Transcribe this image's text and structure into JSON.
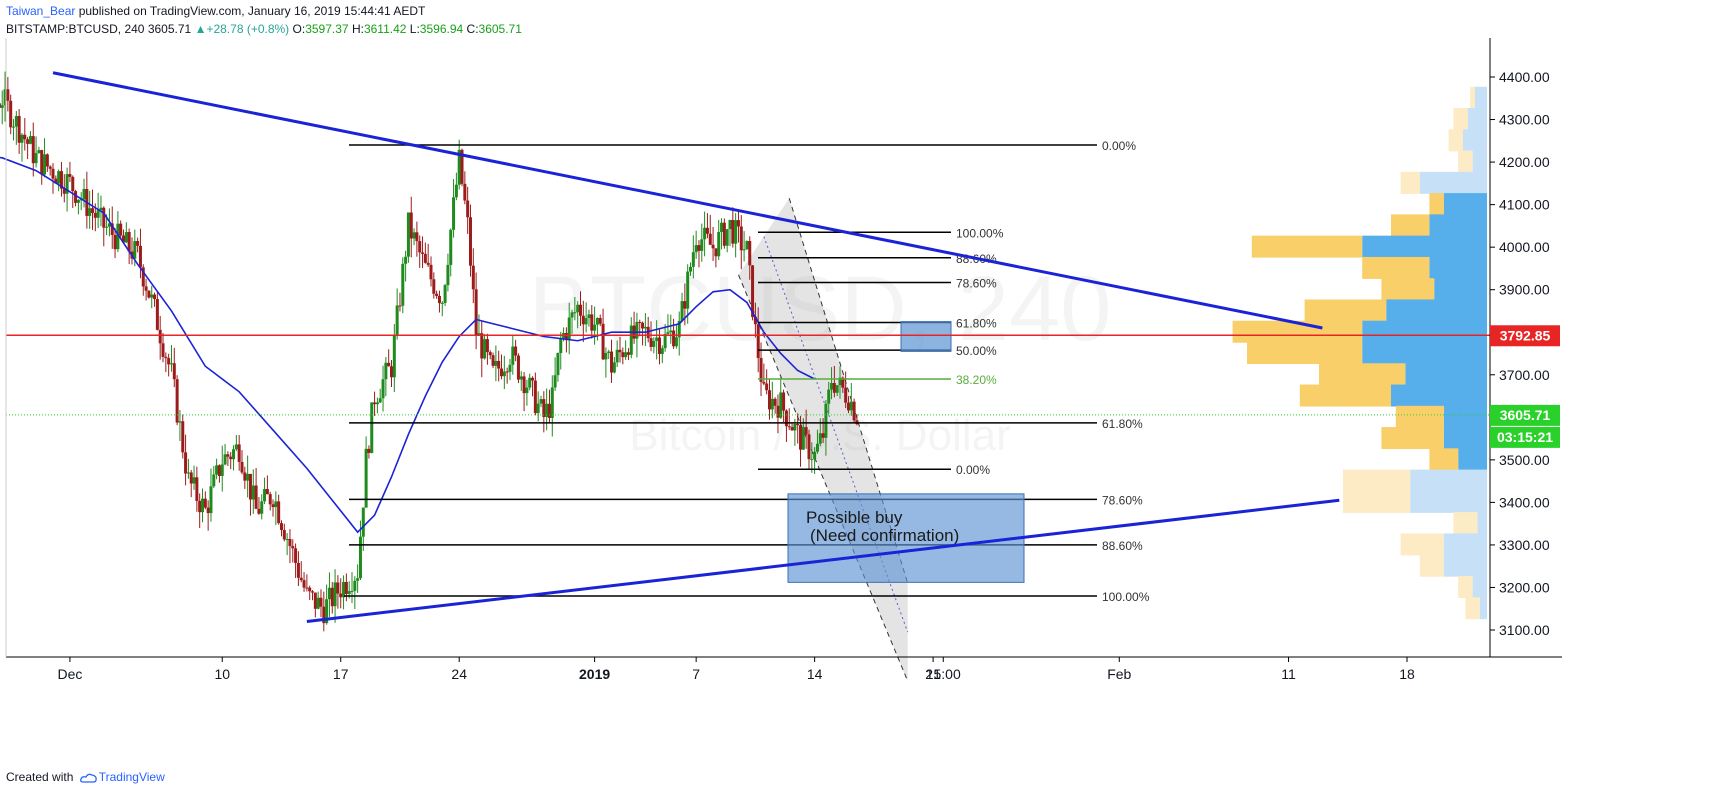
{
  "header": {
    "author": "Taiwan_Bear",
    "published": " published on TradingView.com, January 16, 2019 15:44:41 AEDT",
    "symbol": "BITSTAMP:BTCUSD, 240",
    "price": "3605.71",
    "change_arrow": "▲",
    "change": "+28.78 (+0.8%)",
    "o_label": "O:",
    "o": "3597.37",
    "h_label": "H:",
    "h": "3611.42",
    "l_label": "L:",
    "l": "3596.94",
    "c_label": "C:",
    "c": "3605.71"
  },
  "footer": {
    "created_with": "Created with",
    "brand": "TradingView"
  },
  "watermark": {
    "symbol": "BTCUSD, 240",
    "name": "Bitcoin / U.S. Dollar"
  },
  "colors": {
    "trend": "#1a23d6",
    "ma": "#1a23d6",
    "bull": "#1f8b1f",
    "bear": "#9c1b1b",
    "resistance": "#e82525",
    "current": "#2bd12b",
    "vp_yellow": "#f9cf6a",
    "vp_blue": "#56aeea"
  },
  "chart_data": {
    "type": "candlestick",
    "symbol": "BITSTAMP:BTCUSD",
    "interval": "240",
    "y_axis": {
      "ticks": [
        4400,
        4300,
        4200,
        4100,
        4000,
        3900,
        3800,
        3700,
        3600,
        3500,
        3400,
        3300,
        3200,
        3100
      ],
      "labels": [
        "4400.00",
        "4300.00",
        "4200.00",
        "4100.00",
        "4000.00",
        "3900.00",
        "3800.00",
        "3700.00",
        "3600.00",
        "3500.00",
        "3400.00",
        "3300.00",
        "3200.00",
        "3100.00"
      ],
      "range": [
        3030,
        4440
      ]
    },
    "x_axis": {
      "ticks": [
        "Dec",
        "10",
        "17",
        "24",
        "2019",
        "7",
        "14",
        "21",
        "15:00",
        "Feb",
        "11",
        "18"
      ],
      "bold": [
        "2019"
      ],
      "day_range": [
        -8,
        52
      ],
      "days": [
        0,
        9,
        16,
        23,
        31,
        37,
        44,
        51,
        51.6,
        62,
        72,
        79
      ]
    },
    "price_tags": [
      {
        "value": 3792.85,
        "label": "3792.85",
        "color": "#e82525"
      },
      {
        "value": 3605.71,
        "label": "3605.71",
        "color": "#2bd12b"
      },
      {
        "value": 3570,
        "label": "03:15:21",
        "color": "#2bd12b"
      }
    ],
    "trendlines": [
      {
        "name": "upper",
        "from": [
          -1,
          4410
        ],
        "to": [
          74,
          3810
        ]
      },
      {
        "name": "lower",
        "from": [
          14,
          3120
        ],
        "to": [
          75,
          3405
        ]
      }
    ],
    "resistance_level": 3792.85,
    "moving_average": [
      [
        -8,
        4330
      ],
      [
        -6,
        4220
      ],
      [
        -4,
        4210
      ],
      [
        -2,
        4180
      ],
      [
        0,
        4130
      ],
      [
        2,
        4080
      ],
      [
        4,
        3960
      ],
      [
        6,
        3850
      ],
      [
        8,
        3720
      ],
      [
        10,
        3660
      ],
      [
        12,
        3570
      ],
      [
        14,
        3480
      ],
      [
        16,
        3380
      ],
      [
        17,
        3330
      ],
      [
        18,
        3370
      ],
      [
        19,
        3460
      ],
      [
        20,
        3560
      ],
      [
        21,
        3650
      ],
      [
        22,
        3730
      ],
      [
        23,
        3790
      ],
      [
        24,
        3830
      ],
      [
        25,
        3820
      ],
      [
        26,
        3810
      ],
      [
        28,
        3790
      ],
      [
        30,
        3780
      ],
      [
        32,
        3800
      ],
      [
        34,
        3800
      ],
      [
        36,
        3820
      ],
      [
        37,
        3860
      ],
      [
        38,
        3895
      ],
      [
        39,
        3900
      ],
      [
        40,
        3870
      ],
      [
        41,
        3800
      ],
      [
        42,
        3750
      ],
      [
        43,
        3710
      ],
      [
        44,
        3690
      ]
    ],
    "candles_summary": [
      [
        -8,
        4430
      ],
      [
        -6,
        4300
      ],
      [
        -4,
        4350
      ],
      [
        -2,
        4210
      ],
      [
        0,
        4150
      ],
      [
        2,
        4050
      ],
      [
        4,
        3980
      ],
      [
        5,
        3850
      ],
      [
        6,
        3700
      ],
      [
        7,
        3450
      ],
      [
        8,
        3380
      ],
      [
        9,
        3500
      ],
      [
        10,
        3530
      ],
      [
        11,
        3380
      ],
      [
        12,
        3420
      ],
      [
        13,
        3300
      ],
      [
        14,
        3180
      ],
      [
        15,
        3150
      ],
      [
        16,
        3200
      ],
      [
        17,
        3240
      ],
      [
        17.5,
        3500
      ],
      [
        18,
        3650
      ],
      [
        19,
        3720
      ],
      [
        20,
        4050
      ],
      [
        21,
        3950
      ],
      [
        22,
        3880
      ],
      [
        23,
        4200
      ],
      [
        23.5,
        4050
      ],
      [
        24,
        3800
      ],
      [
        25,
        3700
      ],
      [
        26,
        3750
      ],
      [
        27,
        3680
      ],
      [
        28,
        3600
      ],
      [
        28.5,
        3640
      ],
      [
        29,
        3780
      ],
      [
        30,
        3860
      ],
      [
        31,
        3820
      ],
      [
        32,
        3720
      ],
      [
        33,
        3780
      ],
      [
        34,
        3800
      ],
      [
        35,
        3780
      ],
      [
        36,
        3810
      ],
      [
        37,
        4030
      ],
      [
        38,
        4000
      ],
      [
        39,
        4050
      ],
      [
        40,
        3990
      ],
      [
        40.5,
        3800
      ],
      [
        41,
        3650
      ],
      [
        42,
        3630
      ],
      [
        43,
        3560
      ],
      [
        44,
        3510
      ],
      [
        44.5,
        3560
      ],
      [
        45,
        3690
      ],
      [
        46,
        3650
      ],
      [
        46.5,
        3605.71
      ]
    ],
    "fibonacci": [
      {
        "name": "fib-large",
        "levels": [
          {
            "value": 4240,
            "label": "0.00%"
          },
          {
            "value": 3587,
            "label": "61.80%"
          },
          {
            "value": 3407,
            "label": "78.60%"
          },
          {
            "value": 3300,
            "label": "88.60%"
          },
          {
            "value": 3180,
            "label": "100.00%"
          }
        ]
      },
      {
        "name": "fib-small",
        "levels": [
          {
            "value": 4035,
            "label": "100.00%"
          },
          {
            "value": 3975,
            "label": "88.60%"
          },
          {
            "value": 3917,
            "label": "78.60%"
          },
          {
            "value": 3823,
            "label": "61.80%"
          },
          {
            "value": 3758,
            "label": "50.00%"
          },
          {
            "value": 3690,
            "label": "38.20%",
            "color": "#5aac3e"
          },
          {
            "value": 3478,
            "label": "0.00%"
          }
        ]
      }
    ],
    "annotations": [
      {
        "type": "box",
        "text": "Possible buy",
        "text2": "(Need confirmation)",
        "price_range": [
          3212,
          3420
        ],
        "day_range": [
          40,
          50
        ]
      },
      {
        "type": "box",
        "text": "",
        "price_range": [
          3755,
          3825
        ],
        "day_range": [
          43.5,
          46.5
        ]
      }
    ],
    "channel": {
      "upper": [
        [
          42.5,
          4115
        ],
        [
          49.5,
          3210
        ]
      ],
      "lower": [
        [
          39.5,
          3935
        ],
        [
          49.5,
          2980
        ]
      ]
    },
    "volume_profile": [
      {
        "price": 4350,
        "yellow": 0.1,
        "blue": 0.25
      },
      {
        "price": 4300,
        "yellow": 0.3,
        "blue": 0.4
      },
      {
        "price": 4250,
        "yellow": 0.3,
        "blue": 0.5
      },
      {
        "price": 4200,
        "yellow": 0.3,
        "blue": 0.3
      },
      {
        "price": 4150,
        "yellow": 0.4,
        "blue": 1.4
      },
      {
        "price": 4100,
        "yellow": 0.3,
        "blue": 0.9
      },
      {
        "price": 4050,
        "yellow": 0.8,
        "blue": 1.2
      },
      {
        "price": 4000,
        "yellow": 2.3,
        "blue": 2.6
      },
      {
        "price": 3950,
        "yellow": 1.4,
        "blue": 1.2
      },
      {
        "price": 3900,
        "yellow": 1.1,
        "blue": 1.1
      },
      {
        "price": 3850,
        "yellow": 1.7,
        "blue": 2.1
      },
      {
        "price": 3800,
        "yellow": 2.7,
        "blue": 2.6
      },
      {
        "price": 3750,
        "yellow": 2.4,
        "blue": 2.6
      },
      {
        "price": 3700,
        "yellow": 1.8,
        "blue": 1.7
      },
      {
        "price": 3650,
        "yellow": 1.9,
        "blue": 2.0
      },
      {
        "price": 3600,
        "yellow": 1.0,
        "blue": 0.9
      },
      {
        "price": 3550,
        "yellow": 1.3,
        "blue": 0.9
      },
      {
        "price": 3500,
        "yellow": 0.6,
        "blue": 0.6
      },
      {
        "price": 3450,
        "yellow": 1.4,
        "blue": 1.6
      },
      {
        "price": 3400,
        "yellow": 1.4,
        "blue": 1.6
      },
      {
        "price": 3350,
        "yellow": 0.5,
        "blue": 0.2
      },
      {
        "price": 3300,
        "yellow": 0.9,
        "blue": 0.9
      },
      {
        "price": 3250,
        "yellow": 0.5,
        "blue": 0.9
      },
      {
        "price": 3200,
        "yellow": 0.3,
        "blue": 0.3
      },
      {
        "price": 3150,
        "yellow": 0.3,
        "blue": 0.15
      }
    ]
  }
}
